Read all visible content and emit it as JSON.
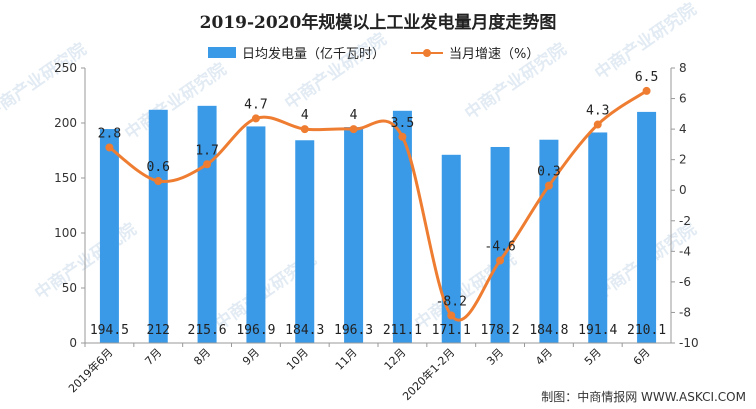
{
  "chart_data": {
    "type": "bar+line",
    "title": "2019-2020年规模以上工业发电量月度走势图",
    "categories": [
      "2019年6月",
      "7月",
      "8月",
      "9月",
      "10月",
      "11月",
      "12月",
      "2020年1-2月",
      "3月",
      "4月",
      "5月",
      "6月"
    ],
    "bar_series": {
      "name": "日均发电量（亿千瓦时）",
      "values": [
        194.5,
        212,
        215.6,
        196.9,
        184.3,
        196.3,
        211.1,
        171.1,
        178.2,
        184.8,
        191.4,
        210.1
      ],
      "labels": [
        "194.5",
        "212",
        "215.6",
        "196.9",
        "184.3",
        "196.3",
        "211.1",
        "171.1",
        "178.2",
        "184.8",
        "191.4",
        "210.1"
      ],
      "color": "#3a9ae8"
    },
    "line_series": {
      "name": "当月增速（%）",
      "values": [
        2.8,
        0.6,
        1.7,
        4.7,
        4,
        4,
        3.5,
        -8.2,
        -4.6,
        0.3,
        4.3,
        6.5
      ],
      "labels": [
        "2.8",
        "0.6",
        "1.7",
        "4.7",
        "4",
        "4",
        "3.5",
        "-8.2",
        "-4.6",
        "0.3",
        "4.3",
        "6.5"
      ],
      "color": "#ef7d31"
    },
    "y_left": {
      "min": 0,
      "max": 250,
      "ticks": [
        "0",
        "50",
        "100",
        "150",
        "200",
        "250"
      ]
    },
    "y_right": {
      "min": -10,
      "max": 8,
      "ticks": [
        "-10",
        "-8",
        "-6",
        "-4",
        "-2",
        "0",
        "2",
        "4",
        "6",
        "8"
      ]
    },
    "grid": false,
    "legend_position": "top"
  },
  "watermark_text": "中商产业研究院",
  "source": "制图：中商情报网 WWW.ASKCI.COM"
}
